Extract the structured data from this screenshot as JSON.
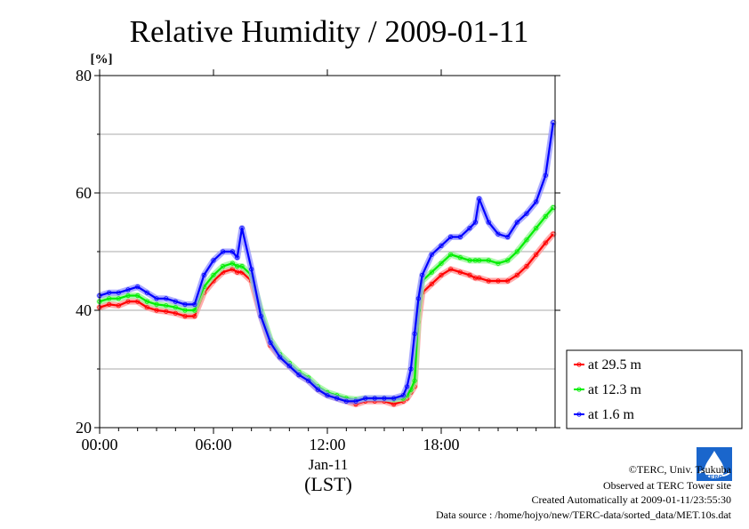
{
  "chart_data": {
    "type": "line",
    "title": "Relative Humidity / 2009-01-11",
    "ylabel": "[%]",
    "xlabel": "(LST)",
    "date_label": "Jan-11",
    "xlim": [
      0,
      24
    ],
    "ylim": [
      20,
      80
    ],
    "x_ticks": [
      {
        "value": 0,
        "label": "00:00"
      },
      {
        "value": 6,
        "label": "06:00"
      },
      {
        "value": 12,
        "label": "12:00"
      },
      {
        "value": 18,
        "label": "18:00"
      }
    ],
    "y_ticks": [
      {
        "value": 20,
        "label": "20"
      },
      {
        "value": 40,
        "label": "40"
      },
      {
        "value": 60,
        "label": "60"
      },
      {
        "value": 80,
        "label": "80"
      }
    ],
    "grid": true,
    "legend_position": "right",
    "x": [
      0,
      0.5,
      1,
      1.5,
      2,
      2.5,
      3,
      3.5,
      4,
      4.5,
      5,
      5.5,
      6,
      6.5,
      7,
      7.25,
      7.5,
      8,
      8.5,
      9,
      9.5,
      10,
      10.5,
      11,
      11.5,
      12,
      12.5,
      13,
      13.5,
      14,
      14.5,
      15,
      15.5,
      16,
      16.2,
      16.4,
      16.6,
      16.8,
      17,
      17.5,
      18,
      18.5,
      19,
      19.5,
      19.8,
      20,
      20.5,
      21,
      21.5,
      22,
      22.5,
      23,
      23.5,
      23.9
    ],
    "series": [
      {
        "name": "at 29.5 m",
        "color": "#ff0000",
        "values": [
          40.5,
          41,
          40.8,
          41.5,
          41.5,
          40.5,
          40,
          39.8,
          39.5,
          39,
          39,
          43,
          45,
          46.5,
          47,
          46.5,
          46.5,
          45,
          39,
          34,
          32,
          30.5,
          29,
          28,
          26.5,
          25.5,
          25,
          24.5,
          24,
          24.5,
          24.5,
          24.5,
          24,
          24.5,
          25,
          26,
          27,
          38,
          43,
          44.5,
          46,
          47,
          46.5,
          46,
          45.5,
          45.5,
          45,
          45,
          45,
          46,
          47.5,
          49.5,
          51.5,
          53
        ]
      },
      {
        "name": "at 12.3 m",
        "color": "#00ee00",
        "values": [
          41.5,
          42,
          42,
          42.5,
          42.5,
          41.5,
          41,
          40.8,
          40.5,
          40,
          40,
          44,
          46,
          47.5,
          48,
          47.5,
          47.5,
          46,
          40,
          35,
          32.5,
          31,
          29.5,
          28.5,
          27,
          26,
          25.5,
          25,
          24.8,
          25,
          25,
          25,
          24.8,
          25,
          25.5,
          26.5,
          28,
          40,
          45,
          46.5,
          48,
          49.5,
          49,
          48.5,
          48.5,
          48.5,
          48.5,
          48,
          48.5,
          50,
          52,
          54,
          56,
          57.5
        ]
      },
      {
        "name": "at 1.6 m",
        "color": "#0000ff",
        "values": [
          42.5,
          43,
          43,
          43.5,
          44,
          43,
          42,
          42,
          41.5,
          41,
          41,
          46,
          48.5,
          50,
          50,
          49,
          54,
          47,
          39,
          34.5,
          32,
          30.5,
          29,
          28,
          26.5,
          25.5,
          25,
          24.5,
          24.5,
          25,
          25,
          25,
          25,
          25.5,
          27,
          30,
          36,
          42,
          46,
          49.5,
          51,
          52.5,
          52.5,
          54,
          55,
          59,
          55,
          53,
          52.5,
          55,
          56.5,
          58.5,
          63,
          72
        ]
      }
    ]
  },
  "footer": {
    "copyright": "©TERC, Univ. Tsukuba",
    "observed": "Observed at TERC Tower site",
    "created": "Created Automatically at 2009-01-11/23:55:30",
    "source": "Data source : /home/hojyo/new/TERC-data/sorted_data/MET.10s.dat"
  },
  "logo": {
    "text": "TERC",
    "color": "#1a66cc"
  }
}
